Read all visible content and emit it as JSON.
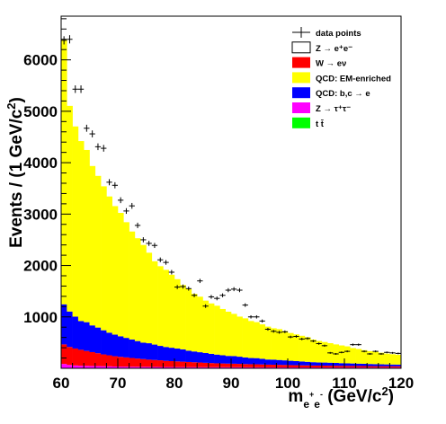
{
  "chart_data": {
    "type": "bar",
    "stacked": true,
    "xlabel": "m_{e⁺e⁻} (GeV/c²)",
    "ylabel": "Events / (1 GeV/c²)",
    "xlim": [
      60,
      120
    ],
    "ylim": [
      0,
      6850
    ],
    "x_ticks": [
      60,
      70,
      80,
      90,
      100,
      110,
      120
    ],
    "y_ticks": [
      1000,
      2000,
      3000,
      4000,
      5000,
      6000
    ],
    "legend_position": "top-right",
    "bin_width": 1,
    "bin_centers": [
      60.5,
      61.5,
      62.5,
      63.5,
      64.5,
      65.5,
      66.5,
      67.5,
      68.5,
      69.5,
      70.5,
      71.5,
      72.5,
      73.5,
      74.5,
      75.5,
      76.5,
      77.5,
      78.5,
      79.5,
      80.5,
      81.5,
      82.5,
      83.5,
      84.5,
      85.5,
      86.5,
      87.5,
      88.5,
      89.5,
      90.5,
      91.5,
      92.5,
      93.5,
      94.5,
      95.5,
      96.5,
      97.5,
      98.5,
      99.5,
      100.5,
      101.5,
      102.5,
      103.5,
      104.5,
      105.5,
      106.5,
      107.5,
      108.5,
      109.5,
      110.5,
      111.5,
      112.5,
      113.5,
      114.5,
      115.5,
      116.5,
      117.5,
      118.5,
      119.5
    ],
    "series": [
      {
        "name": "t t̄",
        "color": "#00ff00",
        "values": [
          5,
          5,
          5,
          5,
          5,
          5,
          5,
          5,
          5,
          5,
          5,
          5,
          5,
          5,
          5,
          5,
          5,
          5,
          5,
          5,
          5,
          5,
          5,
          5,
          5,
          5,
          5,
          5,
          5,
          5,
          5,
          5,
          5,
          5,
          5,
          5,
          5,
          5,
          5,
          5,
          5,
          5,
          5,
          5,
          5,
          5,
          5,
          5,
          5,
          5,
          5,
          5,
          5,
          5,
          5,
          5,
          5,
          5,
          5,
          5
        ]
      },
      {
        "name": "Z → τ⁺τ⁻",
        "color": "#ff00ff",
        "values": [
          80,
          60,
          50,
          45,
          42,
          40,
          38,
          35,
          33,
          30,
          28,
          27,
          26,
          25,
          24,
          23,
          22,
          21,
          20,
          20,
          19,
          19,
          18,
          18,
          18,
          17,
          17,
          17,
          17,
          16,
          16,
          16,
          15,
          15,
          15,
          15,
          14,
          14,
          14,
          14,
          13,
          13,
          13,
          13,
          12,
          12,
          12,
          12,
          12,
          11,
          11,
          11,
          11,
          11,
          10,
          10,
          10,
          10,
          10,
          10
        ]
      },
      {
        "name": "W → eν",
        "color": "#ff0000",
        "values": [
          380,
          350,
          330,
          310,
          290,
          270,
          250,
          230,
          215,
          200,
          190,
          180,
          170,
          160,
          150,
          140,
          135,
          130,
          120,
          115,
          110,
          105,
          100,
          95,
          90,
          85,
          80,
          75,
          72,
          70,
          68,
          65,
          62,
          60,
          58,
          55,
          52,
          50,
          48,
          46,
          44,
          42,
          40,
          38,
          37,
          36,
          35,
          34,
          33,
          32,
          31,
          30,
          29,
          28,
          27,
          26,
          25,
          25,
          24,
          24
        ]
      },
      {
        "name": "QCD: b,c → e",
        "color": "#0000ff",
        "values": [
          780,
          690,
          620,
          560,
          560,
          520,
          500,
          470,
          440,
          420,
          400,
          380,
          360,
          340,
          320,
          320,
          300,
          280,
          270,
          260,
          250,
          240,
          220,
          210,
          200,
          190,
          180,
          170,
          160,
          150,
          150,
          140,
          130,
          120,
          120,
          110,
          100,
          100,
          95,
          90,
          85,
          80,
          75,
          70,
          65,
          60,
          60,
          58,
          55,
          52,
          50,
          48,
          46,
          44,
          42,
          40,
          38,
          36,
          35,
          34
        ]
      },
      {
        "name": "QCD: EM-enriched",
        "color": "#ffff00",
        "values": [
          5150,
          4000,
          3700,
          3500,
          3350,
          3100,
          2950,
          2800,
          2650,
          2500,
          2400,
          2250,
          2100,
          2000,
          1900,
          1760,
          1620,
          1550,
          1500,
          1420,
          1350,
          1250,
          1200,
          1120,
          1080,
          1020,
          980,
          950,
          900,
          860,
          820,
          780,
          760,
          720,
          700,
          670,
          640,
          610,
          600,
          570,
          540,
          520,
          500,
          480,
          440,
          420,
          400,
          380,
          360,
          345,
          330,
          300,
          285,
          265,
          250,
          240,
          225,
          210,
          200,
          190
        ]
      },
      {
        "name": "Z → e⁺e⁻",
        "color": "#ffffff",
        "values": [
          0,
          0,
          0,
          0,
          0,
          0,
          0,
          0,
          0,
          0,
          0,
          0,
          0,
          0,
          0,
          0,
          0,
          0,
          0,
          0,
          0,
          0,
          0,
          0,
          0,
          0,
          0,
          0,
          0,
          0,
          0,
          0,
          0,
          0,
          0,
          0,
          0,
          0,
          0,
          0,
          0,
          0,
          0,
          0,
          0,
          0,
          0,
          0,
          0,
          0,
          0,
          0,
          0,
          0,
          0,
          0,
          0,
          0,
          0,
          0
        ]
      }
    ],
    "data_points": {
      "name": "data points",
      "x": [
        60.5,
        61.5,
        62.5,
        63.5,
        64.5,
        65.5,
        66.5,
        67.5,
        68.5,
        69.5,
        70.5,
        71.5,
        72.5,
        73.5,
        74.5,
        75.5,
        76.5,
        77.5,
        78.5,
        79.5,
        80.5,
        81.5,
        82.5,
        83.5,
        84.5,
        85.5,
        86.5,
        87.5,
        88.5,
        89.5,
        90.5,
        91.5,
        92.5,
        93.5,
        94.5,
        95.5,
        96.5,
        97.5,
        98.5,
        99.5,
        100.5,
        101.5,
        102.5,
        103.5,
        104.5,
        105.5,
        106.5,
        107.5,
        108.5,
        109.5,
        110.5,
        111.5,
        112.5,
        113.5,
        114.5,
        115.5,
        116.5,
        117.5,
        118.5,
        119.5
      ],
      "y": [
        6380,
        6400,
        5430,
        5430,
        4670,
        4560,
        4310,
        4280,
        3620,
        3560,
        3270,
        3060,
        3160,
        2780,
        2500,
        2430,
        2390,
        2110,
        2060,
        1870,
        1580,
        1590,
        1550,
        1420,
        1700,
        1210,
        1390,
        1360,
        1420,
        1520,
        1540,
        1520,
        1230,
        1000,
        1000,
        920,
        760,
        720,
        700,
        710,
        610,
        620,
        570,
        580,
        530,
        480,
        440,
        300,
        280,
        310,
        330,
        460,
        460,
        330,
        280,
        330,
        280,
        310,
        300,
        290
      ]
    }
  },
  "legend": [
    {
      "label": "data points",
      "kind": "marker",
      "color": "#000000"
    },
    {
      "label": "Z → e⁺e⁻",
      "kind": "box",
      "color": "#ffffff"
    },
    {
      "label": "W → eν",
      "kind": "box",
      "color": "#ff0000"
    },
    {
      "label": "QCD: EM-enriched",
      "kind": "box",
      "color": "#ffff00"
    },
    {
      "label": "QCD: b,c → e",
      "kind": "box",
      "color": "#0000ff"
    },
    {
      "label": "Z → τ⁺τ⁻",
      "kind": "box",
      "color": "#ff00ff"
    },
    {
      "label": "t t̄",
      "kind": "box",
      "color": "#00ff00"
    }
  ]
}
